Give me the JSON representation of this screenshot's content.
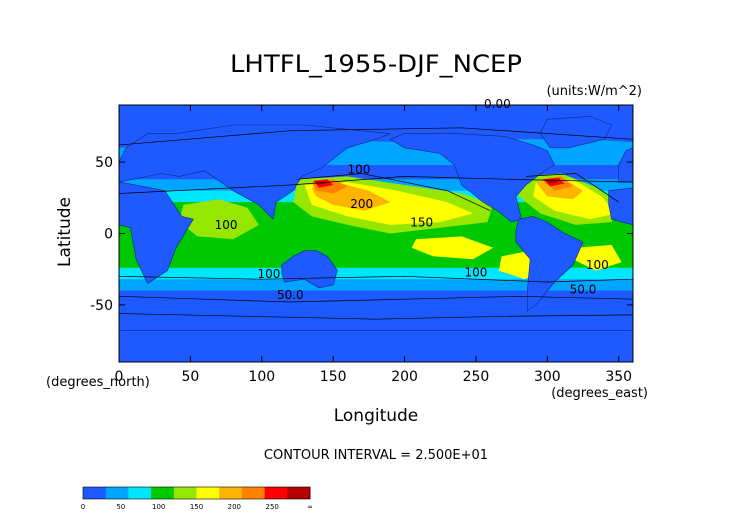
{
  "chart_data": {
    "type": "heatmap",
    "title": "LHTFL_1955-DJF_NCEP",
    "units": "(units:W/m^2)",
    "xlabel": "Longitude",
    "ylabel": "Latitude",
    "x_unit_label": "(degrees_east)",
    "y_unit_label": "(degrees_north)",
    "xlim": [
      0,
      360
    ],
    "ylim": [
      -90,
      90
    ],
    "x_ticks": [
      0,
      50,
      100,
      150,
      200,
      250,
      300,
      350
    ],
    "y_ticks": [
      -50,
      0,
      50
    ],
    "contour_interval_text": "CONTOUR INTERVAL = 2.500E+01",
    "contour_labels": [
      {
        "text": "0.00",
        "lon": 265,
        "lat": 88
      },
      {
        "text": "100",
        "lon": 168,
        "lat": 42
      },
      {
        "text": "200",
        "lon": 170,
        "lat": 18
      },
      {
        "text": "150",
        "lon": 212,
        "lat": 5
      },
      {
        "text": "100",
        "lon": 75,
        "lat": 3
      },
      {
        "text": "100",
        "lon": 105,
        "lat": -31
      },
      {
        "text": "50.0",
        "lon": 120,
        "lat": -46
      },
      {
        "text": "100",
        "lon": 250,
        "lat": -30
      },
      {
        "text": "100",
        "lon": 335,
        "lat": -25
      },
      {
        "text": "50.0",
        "lon": 325,
        "lat": -42
      }
    ],
    "colorbar": {
      "ticks": [
        "0",
        "50",
        "100",
        "150",
        "200",
        "250",
        "∞"
      ],
      "colors": [
        "#1e5aff",
        "#00a5ff",
        "#00e6ff",
        "#00c800",
        "#96e600",
        "#ffff00",
        "#ffb400",
        "#ff8200",
        "#ff0000",
        "#b40000"
      ]
    },
    "fields": {
      "ocean_colors": {
        "lt25": "#1e5aff",
        "25_50": "#00a5ff",
        "50_75": "#00e6ff",
        "75_100": "#00c800",
        "100_125": "#96e600",
        "125_150": "#ffff00",
        "150_200": "#ffb400",
        "200_250": "#ff8200",
        "250_300": "#ff0000",
        "gt300": "#b40000"
      }
    }
  }
}
